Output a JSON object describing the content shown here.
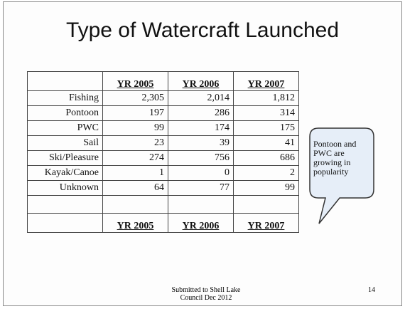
{
  "title": "Type of Watercraft Launched",
  "table": {
    "header": [
      "YR 2005",
      "YR 2006",
      "YR 2007"
    ],
    "rows": [
      [
        "Fishing",
        "2,305",
        "2,014",
        "1,812"
      ],
      [
        "Pontoon",
        "197",
        "286",
        "314"
      ],
      [
        "PWC",
        "99",
        "174",
        "175"
      ],
      [
        "Sail",
        "23",
        "39",
        "41"
      ],
      [
        "Ski/Pleasure",
        "274",
        "756",
        "686"
      ],
      [
        "Kayak/Canoe",
        "1",
        "0",
        "2"
      ],
      [
        "Unknown",
        "64",
        "77",
        "99"
      ]
    ],
    "footer": [
      "YR 2005",
      "YR 2006",
      "YR 2007"
    ]
  },
  "callout": [
    "Pontoon and",
    "PWC are",
    "growing in",
    "popularity"
  ],
  "footer": [
    "Submitted to Shell Lake",
    "Council Dec 2012"
  ],
  "page_number": "14"
}
